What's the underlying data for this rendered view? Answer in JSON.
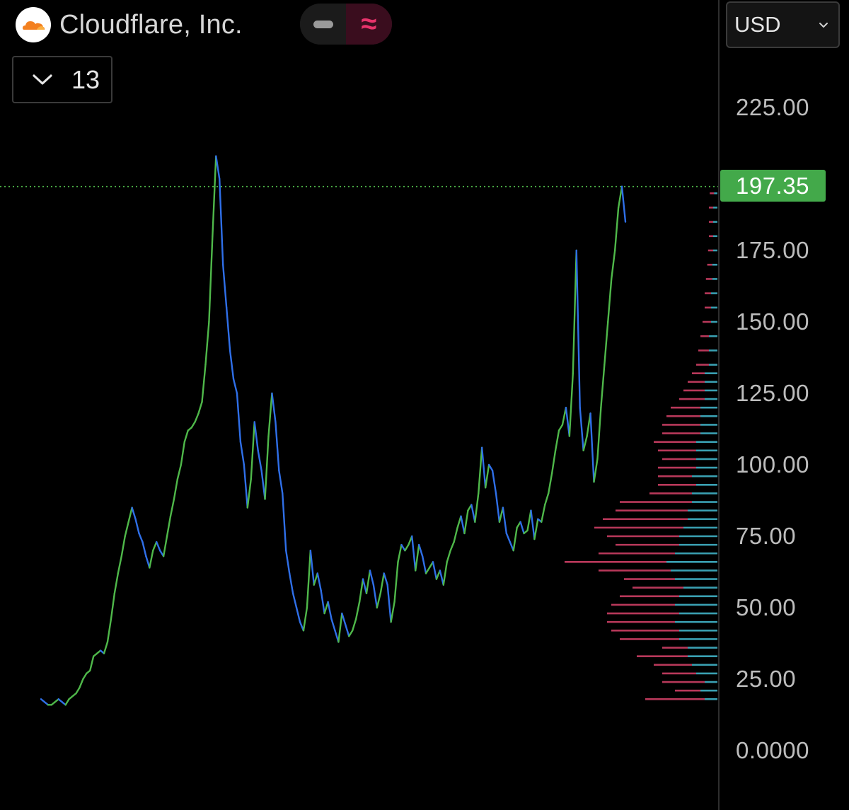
{
  "header": {
    "title": "Cloudflare, Inc.",
    "logo_icon": "cloudflare-logo-icon"
  },
  "mode_toggle": {
    "line_icon": "line-mode-icon",
    "approx_label": "≈",
    "active": "approx"
  },
  "interval_select": {
    "value": "13",
    "icon": "chevron-down-icon"
  },
  "currency_select": {
    "value": "USD",
    "icon": "chevron-down-icon"
  },
  "colors": {
    "up": "#4fb84a",
    "down": "#2f6fe8",
    "price_badge": "#43a94a",
    "profile_sell": "#b8385a",
    "profile_buy": "#3aa0b2",
    "accent": "#e8336b"
  },
  "chart_data": {
    "type": "line",
    "title": "",
    "xlabel": "",
    "ylabel": "",
    "ylim": [
      0,
      225
    ],
    "y_ticks": [
      "225.00",
      "175.00",
      "150.00",
      "125.00",
      "100.00",
      "75.00",
      "50.00",
      "25.00",
      "0.0000"
    ],
    "last_price": 197.35,
    "last_price_label": "197.35",
    "series": [
      {
        "values": [
          18,
          17,
          16,
          16,
          17,
          18,
          17,
          16,
          18,
          19,
          20,
          22,
          25,
          27,
          28,
          33,
          34,
          35,
          34,
          38,
          46,
          55,
          62,
          68,
          75,
          80,
          85,
          81,
          76,
          73,
          68,
          64,
          70,
          73,
          70,
          68,
          75,
          82,
          88,
          95,
          100,
          108,
          112,
          113,
          115,
          118,
          122,
          135,
          150,
          180,
          208,
          200,
          170,
          155,
          140,
          130,
          125,
          108,
          100,
          85,
          95,
          115,
          105,
          98,
          88,
          110,
          125,
          115,
          98,
          90,
          70,
          62,
          55,
          50,
          45,
          42,
          50,
          70,
          58,
          62,
          56,
          48,
          52,
          46,
          42,
          38,
          48,
          44,
          40,
          42,
          46,
          52,
          60,
          55,
          63,
          58,
          50,
          55,
          62,
          58,
          45,
          52,
          66,
          72,
          70,
          72,
          75,
          63,
          72,
          68,
          62,
          64,
          66,
          60,
          63,
          58,
          66,
          70,
          73,
          78,
          82,
          76,
          84,
          86,
          80,
          90,
          106,
          92,
          100,
          98,
          90,
          80,
          85,
          76,
          73,
          70,
          78,
          80,
          76,
          77,
          84,
          74,
          81,
          80,
          86,
          90,
          97,
          105,
          112,
          114,
          120,
          110,
          132,
          175,
          120,
          105,
          110,
          118,
          94,
          102,
          120,
          135,
          150,
          165,
          175,
          190,
          197.35,
          185
        ]
      }
    ],
    "volume_profile": {
      "price_levels": [
        18,
        21,
        24,
        27,
        30,
        33,
        36,
        39,
        42,
        45,
        48,
        51,
        54,
        57,
        60,
        63,
        66,
        69,
        72,
        75,
        78,
        81,
        84,
        87,
        90,
        93,
        96,
        99,
        102,
        105,
        108,
        111,
        114,
        117,
        120,
        123,
        126,
        129,
        132,
        135,
        140,
        145,
        150,
        155,
        160,
        165,
        170,
        175,
        180,
        185,
        190,
        195
      ],
      "sell": [
        14,
        6,
        10,
        8,
        9,
        12,
        6,
        14,
        16,
        16,
        17,
        15,
        14,
        12,
        12,
        17,
        24,
        18,
        15,
        17,
        21,
        20,
        17,
        17,
        10,
        9,
        8,
        9,
        8,
        9,
        10,
        9,
        9,
        8,
        7,
        6,
        5,
        4,
        3,
        3,
        2.5,
        2,
        2,
        1.5,
        1.5,
        1.5,
        1.2,
        1.2,
        1,
        1,
        1,
        1
      ],
      "buy": [
        3,
        4,
        3,
        5,
        6,
        7,
        7,
        9,
        9,
        10,
        9,
        10,
        9,
        8,
        10,
        11,
        12,
        10,
        9,
        9,
        8,
        7,
        7,
        6,
        6,
        5,
        6,
        5,
        5,
        5,
        5,
        4,
        4,
        4,
        4,
        3,
        3,
        3,
        3,
        2,
        2,
        2,
        1.5,
        1.5,
        1.5,
        1.2,
        1.2,
        1,
        1,
        1,
        1,
        0.8
      ]
    }
  }
}
